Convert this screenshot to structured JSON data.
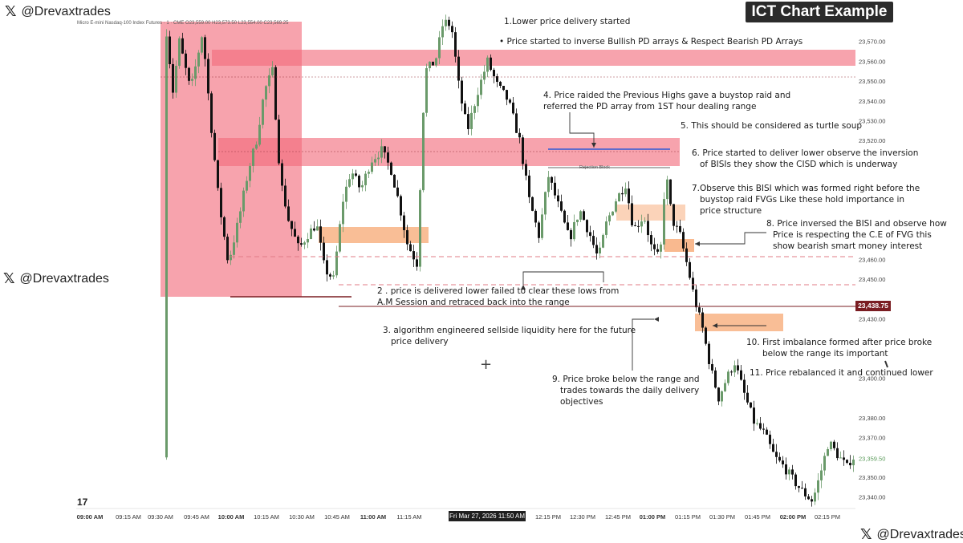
{
  "watermarks": [
    {
      "handle": "@Drevaxtrades"
    },
    {
      "handle": "@Drevaxtrades"
    },
    {
      "handle": "@Drevaxtrades"
    }
  ],
  "badge": "ICT Chart Example",
  "instrument": "Micro E-mini Nasdaq-100 Index Futures · 1 · CME   O23,559.00 H23,573.50 L23,554.00 C23,569.25",
  "annotations": {
    "a1": "1.Lower price delivery started",
    "a1b": "• Price started to inverse Bullish PD arrays & Respect Bearish PD Arrays",
    "a4": [
      "4. Price raided the Previous Highs gave a buystop raid and",
      "referred the PD array from 1ST hour dealing range"
    ],
    "a5": "5. This should be considered as turtle soup",
    "a6": [
      "6. Price started to deliver lower observe the inversion",
      "of BISIs they show the CISD which is underway"
    ],
    "a7": [
      "7.Observe this BISI which was formed right before the",
      "buystop raid FVGs Like these hold importance in",
      "price structure"
    ],
    "a8": [
      "8. Price inversed the BISI and observe how",
      "Price is respecting the C.E of FVG this",
      "show bearish smart money interest"
    ],
    "a2": [
      "2 . price is delivered lower failed to clear these lows from",
      "A.M Session and retraced back into the range"
    ],
    "a3": [
      "3. algorithm engineered sellside liquidity here for the future",
      "price delivery"
    ],
    "a10": [
      "10. First imbalance formed after price broke",
      "below the range its important"
    ],
    "a11": "11. Price rebalanced it and continued lower",
    "a9": [
      "9. Price broke below the range and",
      "trades towards the daily delivery",
      "objectives"
    ],
    "rejection": "Rejection Block"
  },
  "current_price_label": "23,438.75",
  "time_tag": "Fri Mar 27, 2026   11:50 AM",
  "tv_logo": "17",
  "colors": {
    "up": "#6a9a6a",
    "down": "#111111",
    "pd_red": "#f26b7a",
    "fvg_orange": "#f7a873",
    "liq_line": "#7a1d22",
    "blue_line": "#2d5bd6"
  },
  "chart_data": {
    "type": "candlestick",
    "timeframe": "1 minute",
    "y_axis": {
      "min": 23335,
      "max": 23580,
      "ticks": [
        23570,
        23560,
        23550,
        23540,
        23530,
        23520,
        23460,
        23450,
        23430,
        23400,
        23380,
        23370,
        23350,
        23340
      ],
      "tick_labels": [
        "23,570.00",
        "23,560.00",
        "23,550.00",
        "23,540.00",
        "23,530.00",
        "23,520.00",
        "23,460.00",
        "23,450.00",
        "23,430.00",
        "23,400.00",
        "23,380.00",
        "23,370.00",
        "23,350.00",
        "23,340.00"
      ],
      "current_price": 23438.75,
      "secondary_price": 23359.5,
      "secondary_price_label": "23,359.50"
    },
    "x_axis": {
      "labels": [
        "09:00 AM",
        "09:15 AM",
        "09:30 AM",
        "09:45 AM",
        "10:00 AM",
        "10:15 AM",
        "10:30 AM",
        "10:45 AM",
        "11:00 AM",
        "11:15 AM",
        "12:15 PM",
        "12:30 PM",
        "12:45 PM",
        "01:00 PM",
        "01:15 PM",
        "01:30 PM",
        "01:45 PM",
        "02:00 PM",
        "02:15 PM"
      ],
      "bold": [
        "09:00 AM",
        "10:00 AM",
        "11:00 AM",
        "01:00 PM",
        "02:00 PM"
      ]
    },
    "levels": [
      {
        "name": "blue-buyside-level",
        "price": 23518
      },
      {
        "name": "sellside-liquidity-line",
        "price": 23446
      },
      {
        "name": "current-price-line",
        "price": 23438.75
      },
      {
        "name": "am-session-low",
        "price": 23447.5
      }
    ],
    "candles_ohlc_sample": [
      [
        23560,
        23578,
        23548,
        23570
      ],
      [
        23570,
        23575,
        23540,
        23546
      ],
      [
        23546,
        23550,
        23500,
        23505
      ],
      [
        23505,
        23515,
        23470,
        23475
      ],
      [
        23475,
        23500,
        23470,
        23495
      ],
      [
        23495,
        23530,
        23490,
        23525
      ],
      [
        23525,
        23545,
        23510,
        23515
      ],
      [
        23515,
        23520,
        23455,
        23460
      ],
      [
        23460,
        23470,
        23445,
        23450
      ],
      [
        23450,
        23505,
        23448,
        23500
      ],
      [
        23500,
        23520,
        23480,
        23485
      ],
      [
        23485,
        23495,
        23458,
        23462
      ],
      [
        23462,
        23560,
        23460,
        23555
      ],
      [
        23555,
        23580,
        23540,
        23568
      ],
      [
        23568,
        23572,
        23530,
        23540
      ],
      [
        23540,
        23548,
        23495,
        23500
      ],
      [
        23500,
        23505,
        23468,
        23472
      ],
      [
        23472,
        23490,
        23452,
        23458
      ],
      [
        23458,
        23502,
        23455,
        23498
      ],
      [
        23498,
        23510,
        23462,
        23466
      ],
      [
        23466,
        23520,
        23462,
        23515
      ],
      [
        23515,
        23518,
        23450,
        23455
      ],
      [
        23455,
        23462,
        23430,
        23435
      ],
      [
        23435,
        23440,
        23400,
        23405
      ],
      [
        23405,
        23415,
        23375,
        23380
      ],
      [
        23380,
        23395,
        23345,
        23350
      ],
      [
        23350,
        23358,
        23336,
        23340
      ],
      [
        23340,
        23372,
        23338,
        23368
      ],
      [
        23368,
        23372,
        23350,
        23358
      ]
    ]
  }
}
